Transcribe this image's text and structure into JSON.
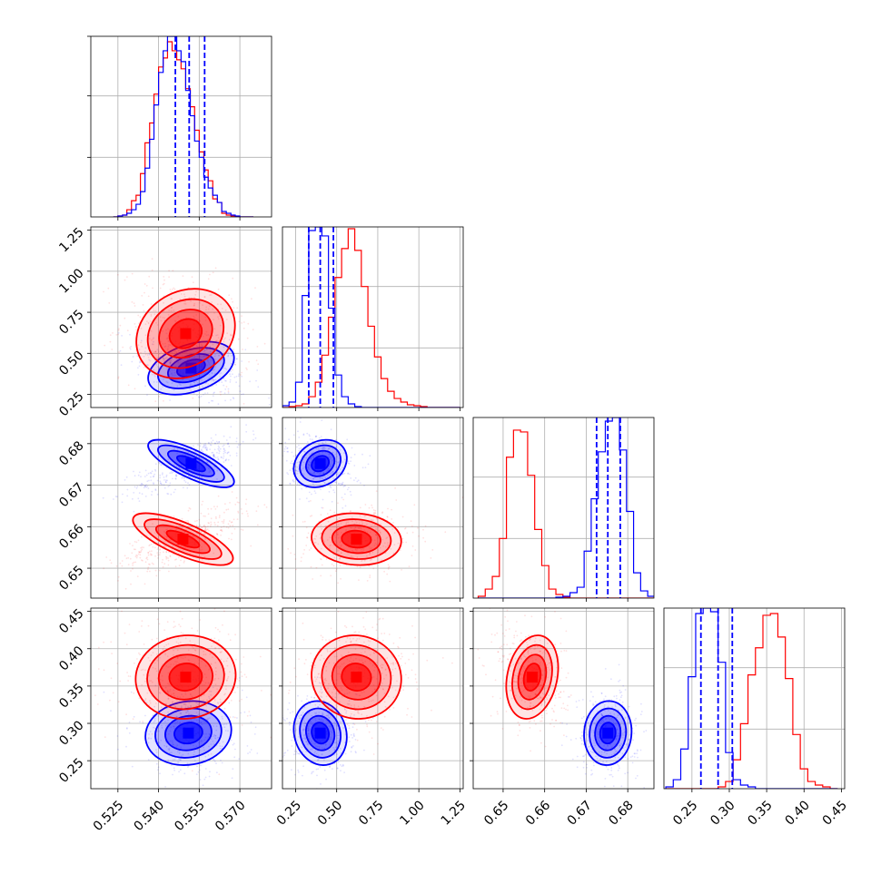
{
  "chart_data": {
    "type": "corner",
    "grid": true,
    "colors": {
      "series_a": "#0000ff",
      "series_b": "#ff0000",
      "grid": "#b0b0b0",
      "frame": "#000000"
    },
    "series": [
      {
        "color": "#0000ff"
      },
      {
        "color": "#ff0000"
      }
    ],
    "parameters": [
      {
        "range": [
          0.515,
          0.5817
        ],
        "ticks": [
          "0.525",
          "0.540",
          "0.555",
          "0.570"
        ],
        "tick_values": [
          0.525,
          0.54,
          0.555,
          0.57
        ]
      },
      {
        "range": [
          0.17,
          1.27
        ],
        "ticks": [
          "0.25",
          "0.50",
          "0.75",
          "1.00",
          "1.25"
        ],
        "tick_values": [
          0.25,
          0.5,
          0.75,
          1.0,
          1.25
        ]
      },
      {
        "range": [
          0.6428,
          0.6863
        ],
        "ticks": [
          "0.65",
          "0.66",
          "0.67",
          "0.68"
        ],
        "tick_values": [
          0.65,
          0.66,
          0.67,
          0.68
        ]
      },
      {
        "range": [
          0.2125,
          0.4544
        ],
        "ticks": [
          "0.25",
          "0.30",
          "0.35",
          "0.40",
          "0.45"
        ],
        "tick_values": [
          0.25,
          0.3,
          0.35,
          0.4,
          0.45
        ]
      }
    ],
    "quantile_lines_blue": [
      [
        0.5462,
        0.5513,
        0.557
      ],
      [
        0.33,
        0.4,
        0.48
      ],
      [
        0.6725,
        0.6752,
        0.6782
      ],
      [
        0.262,
        0.285,
        0.304
      ]
    ],
    "marginals": [
      {
        "blue": {
          "edges": [
            0.5233,
            0.525,
            0.5267,
            0.5283,
            0.53,
            0.5317,
            0.5333,
            0.535,
            0.5367,
            0.5383,
            0.54,
            0.5417,
            0.5433,
            0.545,
            0.5467,
            0.5483,
            0.55,
            0.5517,
            0.5533,
            0.555,
            0.5567,
            0.5583,
            0.56,
            0.5617,
            0.5633,
            0.565,
            0.5667,
            0.5683,
            0.57,
            0.5717,
            0.5733,
            0.575
          ],
          "counts": [
            0.0,
            0.005,
            0.01,
            0.02,
            0.04,
            0.07,
            0.14,
            0.27,
            0.43,
            0.62,
            0.8,
            0.92,
            1.0,
            1.0,
            0.92,
            0.86,
            0.7,
            0.56,
            0.42,
            0.33,
            0.22,
            0.16,
            0.12,
            0.08,
            0.03,
            0.02,
            0.01,
            0.005,
            0.0,
            0.0,
            0.0
          ]
        },
        "red": {
          "edges": [
            0.5233,
            0.525,
            0.5267,
            0.5283,
            0.53,
            0.5317,
            0.5333,
            0.535,
            0.5367,
            0.5383,
            0.54,
            0.5417,
            0.5433,
            0.545,
            0.5467,
            0.5483,
            0.55,
            0.5517,
            0.5533,
            0.555,
            0.5567,
            0.5583,
            0.56,
            0.5617,
            0.5633,
            0.565,
            0.5667,
            0.5683,
            0.57,
            0.5717,
            0.5733,
            0.575
          ],
          "counts": [
            0.0,
            0.005,
            0.01,
            0.04,
            0.09,
            0.12,
            0.24,
            0.41,
            0.52,
            0.68,
            0.83,
            0.88,
            0.97,
            0.92,
            0.87,
            0.82,
            0.71,
            0.61,
            0.48,
            0.36,
            0.26,
            0.2,
            0.1,
            0.08,
            0.02,
            0.01,
            0.005,
            0.0,
            0.0,
            0.0,
            0.0
          ]
        }
      },
      {
        "blue": {
          "edges": [
            0.17,
            0.21,
            0.25,
            0.29,
            0.33,
            0.37,
            0.41,
            0.45,
            0.49,
            0.53,
            0.57,
            0.61,
            0.65,
            0.69,
            0.73,
            0.77,
            0.81,
            0.85,
            0.89,
            0.93,
            0.97,
            1.01,
            1.05,
            1.09,
            1.13,
            1.17,
            1.21,
            1.25
          ],
          "counts": [
            0.01,
            0.03,
            0.14,
            0.62,
            0.98,
            1.0,
            0.95,
            0.55,
            0.18,
            0.06,
            0.02,
            0.005,
            0,
            0,
            0,
            0,
            0,
            0,
            0,
            0,
            0,
            0,
            0,
            0,
            0,
            0,
            0
          ]
        },
        "red": {
          "edges": [
            0.17,
            0.21,
            0.25,
            0.29,
            0.33,
            0.37,
            0.41,
            0.45,
            0.49,
            0.53,
            0.57,
            0.61,
            0.65,
            0.69,
            0.73,
            0.77,
            0.81,
            0.85,
            0.89,
            0.93,
            0.97,
            1.01,
            1.05,
            1.09,
            1.13,
            1.17,
            1.21,
            1.25
          ],
          "counts": [
            0,
            0.005,
            0.01,
            0.02,
            0.06,
            0.14,
            0.29,
            0.5,
            0.72,
            0.88,
            0.99,
            0.87,
            0.67,
            0.45,
            0.28,
            0.16,
            0.09,
            0.05,
            0.03,
            0.015,
            0.01,
            0.005,
            0,
            0,
            0,
            0,
            0
          ]
        }
      },
      {
        "blue": {
          "edges": [
            0.644,
            0.6457,
            0.6474,
            0.6491,
            0.6508,
            0.6525,
            0.6542,
            0.6559,
            0.6576,
            0.6593,
            0.661,
            0.6627,
            0.6644,
            0.6661,
            0.6678,
            0.6695,
            0.6712,
            0.6729,
            0.6746,
            0.6763,
            0.678,
            0.6797,
            0.6814,
            0.6831,
            0.6848,
            0.6865
          ],
          "counts": [
            0,
            0,
            0,
            0,
            0,
            0,
            0,
            0,
            0,
            0,
            0,
            0.005,
            0.01,
            0.03,
            0.06,
            0.26,
            0.55,
            0.81,
            0.98,
            1.0,
            0.82,
            0.48,
            0.14,
            0.04,
            0.01
          ]
        },
        "red": {
          "edges": [
            0.644,
            0.6457,
            0.6474,
            0.6491,
            0.6508,
            0.6525,
            0.6542,
            0.6559,
            0.6576,
            0.6593,
            0.661,
            0.6627,
            0.6644,
            0.6661,
            0.6678,
            0.6695,
            0.6712,
            0.6729,
            0.6746,
            0.6763,
            0.678,
            0.6797,
            0.6814,
            0.6831,
            0.6848,
            0.6865
          ],
          "counts": [
            0.01,
            0.05,
            0.12,
            0.33,
            0.78,
            0.93,
            0.92,
            0.68,
            0.38,
            0.18,
            0.05,
            0.02,
            0.005,
            0,
            0,
            0,
            0,
            0,
            0,
            0,
            0,
            0,
            0,
            0,
            0
          ]
        }
      },
      {
        "blue": {
          "edges": [
            0.215,
            0.225,
            0.235,
            0.245,
            0.255,
            0.265,
            0.275,
            0.285,
            0.295,
            0.305,
            0.315,
            0.325,
            0.335,
            0.345,
            0.355,
            0.365,
            0.375,
            0.385,
            0.395,
            0.405,
            0.415,
            0.425,
            0.435,
            0.445
          ],
          "counts": [
            0.01,
            0.05,
            0.22,
            0.62,
            0.97,
            1.0,
            0.98,
            0.7,
            0.2,
            0.05,
            0.02,
            0.01,
            0,
            0,
            0,
            0,
            0,
            0,
            0,
            0,
            0,
            0,
            0
          ]
        },
        "red": {
          "edges": [
            0.215,
            0.225,
            0.235,
            0.245,
            0.255,
            0.265,
            0.275,
            0.285,
            0.295,
            0.305,
            0.315,
            0.325,
            0.335,
            0.345,
            0.355,
            0.365,
            0.375,
            0.385,
            0.395,
            0.405,
            0.415,
            0.425,
            0.435,
            0.445
          ],
          "counts": [
            0,
            0,
            0,
            0,
            0,
            0,
            0,
            0.01,
            0.04,
            0.16,
            0.36,
            0.63,
            0.78,
            0.96,
            0.97,
            0.84,
            0.61,
            0.3,
            0.11,
            0.04,
            0.02,
            0.01,
            0
          ]
        }
      }
    ],
    "blobs": [
      {
        "xi": 0,
        "yi": 1,
        "color": "#0000ff",
        "cx": 0.552,
        "cy": 0.41,
        "sx": 0.0061,
        "sy": 0.062,
        "rho": -0.38
      },
      {
        "xi": 0,
        "yi": 1,
        "color": "#ff0000",
        "cx": 0.55,
        "cy": 0.62,
        "sx": 0.007,
        "sy": 0.105,
        "rho": -0.18
      },
      {
        "xi": 0,
        "yi": 2,
        "color": "#0000ff",
        "cx": 0.552,
        "cy": 0.6752,
        "sx": 0.0061,
        "sy": 0.0022,
        "rho": 0.76
      },
      {
        "xi": 0,
        "yi": 2,
        "color": "#ff0000",
        "cx": 0.549,
        "cy": 0.657,
        "sx": 0.0071,
        "sy": 0.0024,
        "rho": 0.74
      },
      {
        "xi": 0,
        "yi": 3,
        "color": "#0000ff",
        "cx": 0.551,
        "cy": 0.287,
        "sx": 0.0061,
        "sy": 0.0165,
        "rho": -0.1
      },
      {
        "xi": 0,
        "yi": 3,
        "color": "#ff0000",
        "cx": 0.55,
        "cy": 0.362,
        "sx": 0.0071,
        "sy": 0.0215,
        "rho": -0.05
      },
      {
        "xi": 1,
        "yi": 2,
        "color": "#0000ff",
        "cx": 0.4,
        "cy": 0.6752,
        "sx": 0.062,
        "sy": 0.0022,
        "rho": -0.22
      },
      {
        "xi": 1,
        "yi": 2,
        "color": "#ff0000",
        "cx": 0.62,
        "cy": 0.657,
        "sx": 0.105,
        "sy": 0.0024,
        "rho": 0.08
      },
      {
        "xi": 1,
        "yi": 3,
        "color": "#0000ff",
        "cx": 0.4,
        "cy": 0.287,
        "sx": 0.062,
        "sy": 0.0165,
        "rho": 0.12
      },
      {
        "xi": 1,
        "yi": 3,
        "color": "#ff0000",
        "cx": 0.62,
        "cy": 0.362,
        "sx": 0.105,
        "sy": 0.0215,
        "rho": 0.05
      },
      {
        "xi": 2,
        "yi": 3,
        "color": "#0000ff",
        "cx": 0.6752,
        "cy": 0.287,
        "sx": 0.0022,
        "sy": 0.0165,
        "rho": -0.05
      },
      {
        "xi": 2,
        "yi": 3,
        "color": "#ff0000",
        "cx": 0.657,
        "cy": 0.362,
        "sx": 0.0024,
        "sy": 0.0215,
        "rho": -0.22
      }
    ]
  }
}
